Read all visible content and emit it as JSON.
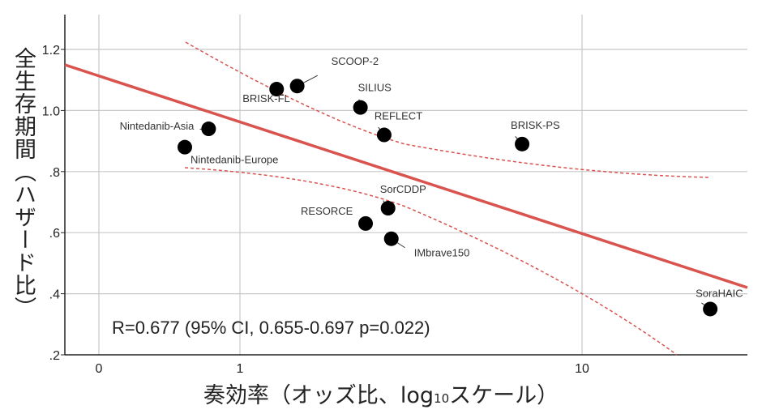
{
  "chart_data": {
    "type": "scatter",
    "title": "",
    "xlabel": "奏効率（オッズ比、log10スケール）",
    "xlabel_parts": {
      "pre": "奏効率（オッズ比、log",
      "sub": "10",
      "post": "スケール）"
    },
    "ylabel": "全生存期間（ハザード比）",
    "x_scale": "log10",
    "x_ticks": [
      {
        "label": "0",
        "px": 122
      },
      {
        "label": "1",
        "px": 296
      },
      {
        "label": "10",
        "px": 718
      }
    ],
    "y_ticks": [
      {
        "label": "1.2",
        "value": 1.2
      },
      {
        "label": "1.0",
        "value": 1.0
      },
      {
        "label": ".8",
        "value": 0.8
      },
      {
        "label": ".6",
        "value": 0.6
      },
      {
        "label": ".4",
        "value": 0.4
      },
      {
        "label": ".2",
        "value": 0.2
      }
    ],
    "ylim": [
      0.2,
      1.3
    ],
    "grid": true,
    "points": [
      {
        "name": "Nintedanib-Asia",
        "x": 0.81,
        "y": 0.94
      },
      {
        "name": "Nintedanib-Europe",
        "x": 0.69,
        "y": 0.88
      },
      {
        "name": "BRISK-FL",
        "x": 1.28,
        "y": 1.07
      },
      {
        "name": "SCOOP-2",
        "x": 1.47,
        "y": 1.08
      },
      {
        "name": "SILIUS",
        "x": 2.25,
        "y": 1.01
      },
      {
        "name": "REFLECT",
        "x": 2.64,
        "y": 0.92
      },
      {
        "name": "BRISK-PS",
        "x": 6.68,
        "y": 0.89
      },
      {
        "name": "SorCDDP",
        "x": 2.71,
        "y": 0.68
      },
      {
        "name": "RESORCE",
        "x": 2.33,
        "y": 0.63
      },
      {
        "name": "IMbrave150",
        "x": 2.77,
        "y": 0.58
      },
      {
        "name": "SoraHAIC",
        "x": 23.7,
        "y": 0.35
      }
    ],
    "fit_line": {
      "color": "#d9534f",
      "style": "solid"
    },
    "ci_band": {
      "color": "#d9534f",
      "style": "dashed"
    },
    "annotation": "R=0.677 (95% CI, 0.655-0.697 p=0.022)"
  }
}
